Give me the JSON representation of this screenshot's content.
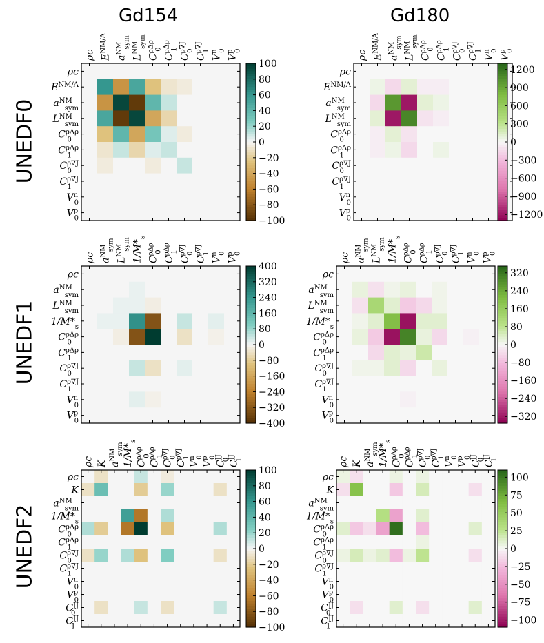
{
  "columns": [
    "Gd154",
    "Gd180"
  ],
  "rows": [
    "UNEDF0",
    "UNEDF1",
    "UNEDF2"
  ],
  "chart_data": [
    {
      "type": "heatmap",
      "title": "Gd154",
      "row": "UNEDF0",
      "labels": [
        "ρc",
        "E^NM/A",
        "a^NM_sym",
        "L^NM_sym",
        "C^ρΔρ_0",
        "C^ρΔρ_1",
        "C^ρ∇J_0",
        "C^ρ∇J_1",
        "V^n_0",
        "V^p_0"
      ],
      "colormap": "BrBG",
      "vmin": -100,
      "vmax": 100,
      "colorbar_ticks": [
        "100",
        "80",
        "60",
        "40",
        "20",
        "0",
        "−20",
        "−40",
        "−60",
        "−80",
        "−100"
      ],
      "matrix": [
        [
          0,
          0,
          0,
          0,
          0,
          0,
          0,
          0,
          0,
          0
        ],
        [
          0,
          60,
          -50,
          50,
          -25,
          -8,
          -5,
          0,
          0,
          0
        ],
        [
          0,
          -50,
          95,
          -95,
          40,
          10,
          0,
          0,
          0,
          0
        ],
        [
          0,
          50,
          -95,
          95,
          -40,
          -15,
          0,
          0,
          0,
          0
        ],
        [
          0,
          -25,
          40,
          -40,
          30,
          5,
          -5,
          0,
          0,
          0
        ],
        [
          0,
          -8,
          10,
          -15,
          5,
          10,
          0,
          0,
          0,
          0
        ],
        [
          0,
          -5,
          0,
          0,
          -5,
          0,
          10,
          0,
          0,
          0
        ],
        [
          0,
          0,
          0,
          0,
          0,
          0,
          0,
          0,
          0,
          0
        ],
        [
          0,
          0,
          0,
          0,
          0,
          0,
          0,
          0,
          0,
          0
        ],
        [
          0,
          0,
          0,
          0,
          0,
          0,
          0,
          0,
          0,
          0
        ]
      ]
    },
    {
      "type": "heatmap",
      "title": "Gd180",
      "row": "UNEDF0",
      "labels": [
        "ρc",
        "E^NM/A",
        "a^NM_sym",
        "L^NM_sym",
        "C^ρΔρ_0",
        "C^ρΔρ_1",
        "C^ρ∇J_0",
        "C^ρ∇J_1",
        "V^n_0",
        "V^p_0"
      ],
      "colormap": "PiYG",
      "vmin": -1300,
      "vmax": 1300,
      "colorbar_ticks": [
        "1200",
        "900",
        "600",
        "300",
        "0",
        "−300",
        "−600",
        "−900",
        "−1200"
      ],
      "matrix": [
        [
          0,
          0,
          0,
          0,
          0,
          0,
          0,
          0,
          0,
          0
        ],
        [
          0,
          50,
          -150,
          100,
          -50,
          -50,
          0,
          0,
          0,
          0
        ],
        [
          0,
          -150,
          1000,
          -1200,
          100,
          50,
          0,
          0,
          0,
          0
        ],
        [
          0,
          100,
          -1200,
          1100,
          -100,
          -50,
          0,
          0,
          0,
          0
        ],
        [
          0,
          -50,
          100,
          -100,
          0,
          0,
          0,
          0,
          0,
          0
        ],
        [
          0,
          -50,
          50,
          -150,
          0,
          50,
          0,
          0,
          0,
          0
        ],
        [
          0,
          0,
          0,
          0,
          0,
          0,
          0,
          0,
          0,
          0
        ],
        [
          0,
          0,
          0,
          0,
          0,
          0,
          0,
          0,
          0,
          0
        ],
        [
          0,
          0,
          0,
          0,
          0,
          0,
          0,
          0,
          0,
          0
        ],
        [
          0,
          0,
          0,
          0,
          0,
          0,
          0,
          0,
          0,
          0
        ]
      ]
    },
    {
      "type": "heatmap",
      "title": "Gd154",
      "row": "UNEDF1",
      "labels": [
        "ρc",
        "a^NM_sym",
        "L^NM_sym",
        "1/M*_s",
        "C^ρΔρ_0",
        "C^ρΔρ_1",
        "C^ρ∇J_0",
        "C^ρ∇J_1",
        "V^n_0",
        "V^p_0"
      ],
      "colormap": "BrBG",
      "vmin": -400,
      "vmax": 400,
      "colorbar_ticks": [
        "400",
        "320",
        "240",
        "160",
        "80",
        "0",
        "−80",
        "−160",
        "−240",
        "−320",
        "−400"
      ],
      "matrix": [
        [
          0,
          0,
          0,
          0,
          0,
          0,
          0,
          0,
          0,
          0
        ],
        [
          0,
          0,
          0,
          10,
          0,
          0,
          0,
          0,
          0,
          0
        ],
        [
          0,
          0,
          10,
          10,
          -15,
          0,
          0,
          0,
          0,
          0
        ],
        [
          0,
          10,
          10,
          250,
          -330,
          0,
          40,
          0,
          15,
          0
        ],
        [
          0,
          0,
          -15,
          -330,
          400,
          0,
          -40,
          0,
          -10,
          0
        ],
        [
          0,
          0,
          0,
          0,
          0,
          0,
          0,
          0,
          0,
          0
        ],
        [
          0,
          0,
          0,
          40,
          -40,
          0,
          15,
          0,
          0,
          0
        ],
        [
          0,
          0,
          0,
          0,
          0,
          0,
          0,
          0,
          0,
          0
        ],
        [
          0,
          0,
          0,
          15,
          -10,
          0,
          0,
          0,
          0,
          0
        ],
        [
          0,
          0,
          0,
          0,
          0,
          0,
          0,
          0,
          0,
          0
        ]
      ]
    },
    {
      "type": "heatmap",
      "title": "Gd180",
      "row": "UNEDF1",
      "labels": [
        "ρc",
        "a^NM_sym",
        "L^NM_sym",
        "1/M*_s",
        "C^ρΔρ_0",
        "C^ρΔρ_1",
        "C^ρ∇J_0",
        "C^ρ∇J_1",
        "V^n_0",
        "V^p_0"
      ],
      "colormap": "PiYG",
      "vmin": -350,
      "vmax": 350,
      "colorbar_ticks": [
        "320",
        "240",
        "160",
        "80",
        "0",
        "−80",
        "−160",
        "−240",
        "−320"
      ],
      "matrix": [
        [
          0,
          0,
          0,
          0,
          0,
          0,
          0,
          0,
          0,
          0
        ],
        [
          0,
          20,
          -30,
          10,
          20,
          0,
          10,
          0,
          0,
          0
        ],
        [
          0,
          -30,
          120,
          30,
          -60,
          -40,
          10,
          0,
          0,
          0
        ],
        [
          0,
          10,
          30,
          200,
          -330,
          30,
          30,
          0,
          0,
          0
        ],
        [
          0,
          20,
          -60,
          -330,
          300,
          20,
          -40,
          0,
          -10,
          0
        ],
        [
          0,
          0,
          -40,
          30,
          20,
          60,
          0,
          0,
          0,
          0
        ],
        [
          0,
          10,
          10,
          30,
          -40,
          0,
          20,
          0,
          0,
          0
        ],
        [
          0,
          0,
          0,
          0,
          0,
          0,
          0,
          0,
          0,
          0
        ],
        [
          0,
          0,
          0,
          0,
          -10,
          0,
          0,
          0,
          0,
          0
        ],
        [
          0,
          0,
          0,
          0,
          0,
          0,
          0,
          0,
          0,
          0
        ]
      ]
    },
    {
      "type": "heatmap",
      "title": "Gd154",
      "row": "UNEDF2",
      "labels": [
        "ρc",
        "K",
        "a^NM_sym",
        "1/M*_s",
        "C^ρΔρ_0",
        "C^ρΔρ_1",
        "C^ρ∇J_0",
        "C^ρ∇J_1",
        "V^n_0",
        "V^p_0",
        "C^JJ_0",
        "C^JJ_1"
      ],
      "colormap": "BrBG",
      "vmin": -100,
      "vmax": 100,
      "colorbar_ticks": [
        "100",
        "80",
        "60",
        "40",
        "20",
        "0",
        "−20",
        "−40",
        "−60",
        "−80",
        "−100"
      ],
      "matrix": [
        [
          0,
          -10,
          0,
          0,
          10,
          0,
          -5,
          0,
          0,
          0,
          0,
          0
        ],
        [
          -10,
          35,
          0,
          0,
          -20,
          0,
          20,
          0,
          0,
          0,
          -10,
          0
        ],
        [
          0,
          0,
          0,
          0,
          0,
          0,
          0,
          0,
          0,
          0,
          0,
          0
        ],
        [
          0,
          0,
          0,
          55,
          -65,
          0,
          15,
          0,
          0,
          0,
          0,
          0
        ],
        [
          15,
          -20,
          0,
          -65,
          100,
          0,
          -25,
          0,
          0,
          0,
          15,
          0
        ],
        [
          0,
          0,
          0,
          0,
          0,
          0,
          0,
          0,
          0,
          0,
          0,
          0
        ],
        [
          -10,
          20,
          0,
          15,
          -25,
          0,
          25,
          0,
          0,
          0,
          -10,
          0
        ],
        [
          0,
          0,
          0,
          0,
          0,
          0,
          0,
          0,
          0,
          0,
          0,
          0
        ],
        [
          0,
          0,
          0,
          0,
          0,
          0,
          0,
          0,
          0,
          0,
          0,
          0
        ],
        [
          0,
          0,
          0,
          0,
          0,
          0,
          0,
          0,
          0,
          0,
          0,
          0
        ],
        [
          0,
          -10,
          0,
          0,
          10,
          0,
          -10,
          0,
          0,
          0,
          10,
          0
        ],
        [
          0,
          0,
          0,
          0,
          0,
          0,
          0,
          0,
          0,
          0,
          0,
          0
        ]
      ]
    },
    {
      "type": "heatmap",
      "title": "Gd180",
      "row": "UNEDF2",
      "labels": [
        "ρc",
        "K",
        "a^NM_sym",
        "1/M*_s",
        "C^ρΔρ_0",
        "C^ρΔρ_1",
        "C^ρ∇J_0",
        "C^ρ∇J_1",
        "V^n_0",
        "V^p_0",
        "C^JJ_0",
        "C^JJ_1"
      ],
      "colormap": "PiYG",
      "vmin": -110,
      "vmax": 110,
      "colorbar_ticks": [
        "100",
        "75",
        "50",
        "25",
        "0",
        "−25",
        "−50",
        "−75",
        "−100"
      ],
      "matrix": [
        [
          5,
          -10,
          0,
          0,
          5,
          0,
          5,
          0,
          0,
          0,
          0,
          0
        ],
        [
          -10,
          60,
          0,
          0,
          -20,
          0,
          15,
          0,
          0,
          0,
          -10,
          0
        ],
        [
          0,
          0,
          0,
          0,
          0,
          0,
          0,
          0,
          0,
          0,
          0,
          0
        ],
        [
          0,
          0,
          0,
          30,
          -40,
          0,
          10,
          0,
          0,
          0,
          0,
          0
        ],
        [
          10,
          -20,
          -10,
          -40,
          105,
          0,
          -25,
          0,
          0,
          0,
          10,
          0
        ],
        [
          0,
          0,
          0,
          0,
          0,
          0,
          5,
          0,
          0,
          0,
          0,
          0
        ],
        [
          5,
          15,
          5,
          10,
          -25,
          5,
          25,
          0,
          0,
          0,
          -10,
          0
        ],
        [
          0,
          0,
          0,
          0,
          0,
          0,
          0,
          0,
          0,
          0,
          0,
          0
        ],
        [
          0,
          0,
          0,
          0,
          0,
          0,
          0,
          0,
          0,
          0,
          0,
          0
        ],
        [
          0,
          0,
          0,
          0,
          0,
          0,
          0,
          0,
          0,
          0,
          0,
          0
        ],
        [
          0,
          -10,
          0,
          0,
          10,
          0,
          -10,
          0,
          0,
          0,
          10,
          0
        ],
        [
          0,
          0,
          0,
          0,
          0,
          0,
          0,
          0,
          0,
          0,
          0,
          0
        ]
      ]
    }
  ]
}
